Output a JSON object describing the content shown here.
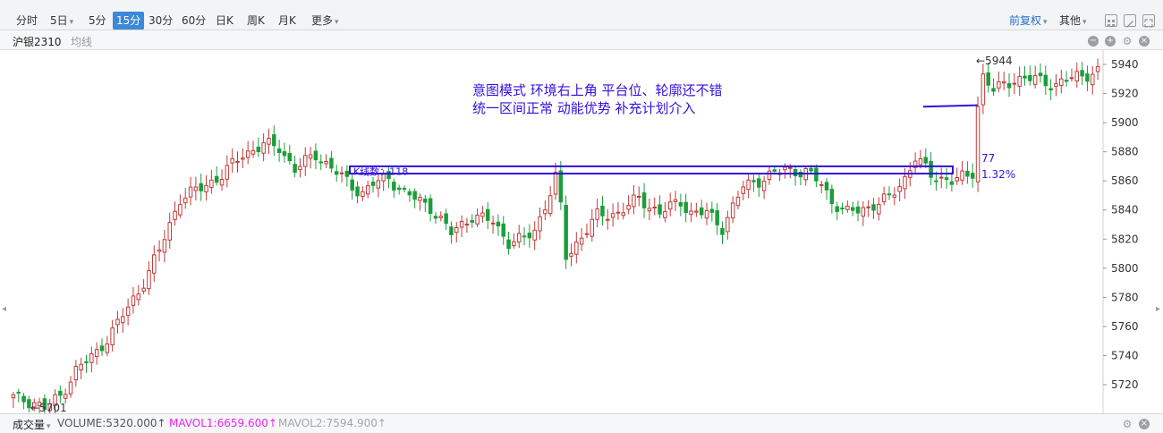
{
  "toolbar": {
    "periods": [
      {
        "label": "分时",
        "active": false,
        "dropdown": false
      },
      {
        "label": "5日",
        "active": false,
        "dropdown": true
      },
      {
        "label": "5分",
        "active": false,
        "dropdown": false
      },
      {
        "label": "15分",
        "active": true,
        "dropdown": false
      },
      {
        "label": "30分",
        "active": false,
        "dropdown": false
      },
      {
        "label": "60分",
        "active": false,
        "dropdown": false
      },
      {
        "label": "日K",
        "active": false,
        "dropdown": false
      },
      {
        "label": "周K",
        "active": false,
        "dropdown": false
      },
      {
        "label": "月K",
        "active": false,
        "dropdown": false
      },
      {
        "label": "更多",
        "active": false,
        "dropdown": true
      }
    ],
    "adjust_label": "前复权",
    "other_label": "其他"
  },
  "infobar": {
    "symbol": "沪银2310",
    "indicator": "均线"
  },
  "annotation": {
    "line1": "意图模式 环境右上角 平台位、轮廓还不错",
    "line2": "统一区间正常 动能优势 补充计划介入",
    "box_label": "K线数：118",
    "box_value": "77",
    "box_pct": "1.32%"
  },
  "chart_data": {
    "type": "candlestick",
    "ylim": [
      5700,
      5950
    ],
    "yticks": [
      5720,
      5740,
      5760,
      5780,
      5800,
      5820,
      5840,
      5860,
      5880,
      5900,
      5920,
      5940
    ],
    "high_label": "5944",
    "low_label": "5701",
    "anchors": [
      [
        0,
        5711
      ],
      [
        4,
        5708
      ],
      [
        6,
        5704
      ],
      [
        9,
        5712
      ],
      [
        12,
        5730
      ],
      [
        16,
        5742
      ],
      [
        20,
        5762
      ],
      [
        24,
        5784
      ],
      [
        28,
        5812
      ],
      [
        32,
        5848
      ],
      [
        36,
        5855
      ],
      [
        40,
        5864
      ],
      [
        44,
        5878
      ],
      [
        48,
        5885
      ],
      [
        51,
        5883
      ],
      [
        54,
        5868
      ],
      [
        58,
        5878
      ],
      [
        62,
        5866
      ],
      [
        65,
        5856
      ],
      [
        67,
        5852
      ],
      [
        69,
        5858
      ],
      [
        72,
        5862
      ],
      [
        75,
        5852
      ],
      [
        80,
        5842
      ],
      [
        84,
        5824
      ],
      [
        88,
        5836
      ],
      [
        92,
        5832
      ],
      [
        95,
        5818
      ],
      [
        98,
        5820
      ],
      [
        100,
        5826
      ],
      [
        103,
        5852
      ],
      [
        104,
        5862
      ],
      [
        105,
        5842
      ],
      [
        106,
        5808
      ],
      [
        107,
        5812
      ],
      [
        109,
        5822
      ],
      [
        112,
        5836
      ],
      [
        116,
        5838
      ],
      [
        120,
        5848
      ],
      [
        124,
        5838
      ],
      [
        128,
        5846
      ],
      [
        130,
        5838
      ],
      [
        133,
        5838
      ],
      [
        136,
        5828
      ],
      [
        138,
        5842
      ],
      [
        140,
        5856
      ],
      [
        144,
        5862
      ],
      [
        148,
        5868
      ],
      [
        152,
        5866
      ],
      [
        155,
        5858
      ],
      [
        157,
        5846
      ],
      [
        160,
        5838
      ],
      [
        164,
        5842
      ],
      [
        168,
        5848
      ],
      [
        171,
        5862
      ],
      [
        173,
        5876
      ],
      [
        176,
        5864
      ],
      [
        180,
        5860
      ],
      [
        183,
        5863
      ],
      [
        184,
        5866
      ],
      [
        185,
        5912
      ],
      [
        186,
        5932
      ],
      [
        188,
        5922
      ],
      [
        192,
        5930
      ],
      [
        196,
        5930
      ],
      [
        200,
        5926
      ],
      [
        204,
        5932
      ],
      [
        208,
        5935
      ]
    ],
    "volume_label": "成交量",
    "volume": "VOLUME:5320.000↑",
    "mavol1": "MAVOL1:6659.600↑",
    "mavol2": "MAVOL2:7594.900↑"
  },
  "colors": {
    "up": "#c23a3a",
    "down": "#1a9e3a",
    "annotation": "#3311dd",
    "active_tab": "#3c89d8",
    "mavol1": "#ee22ee",
    "mavol2": "#a6a6a6"
  }
}
